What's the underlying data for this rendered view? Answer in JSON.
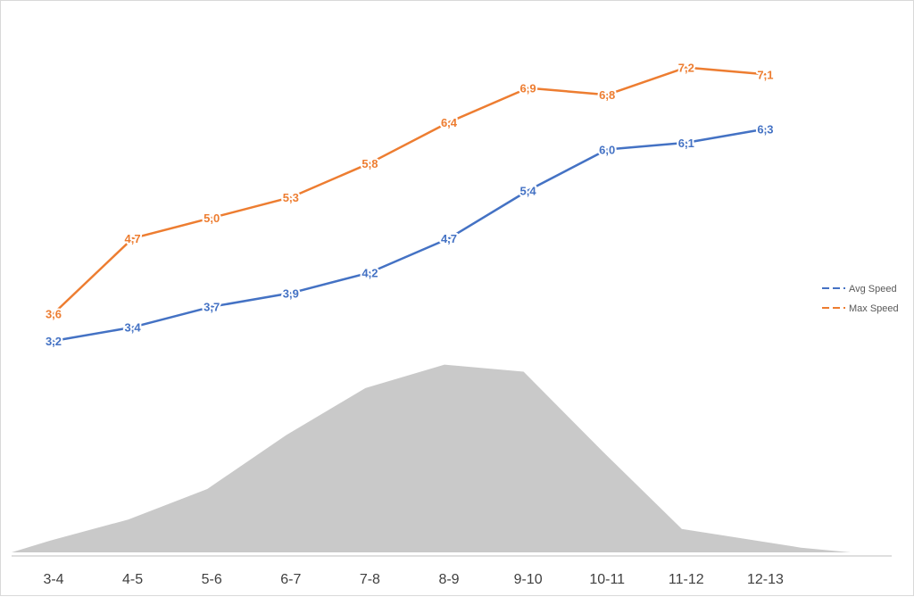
{
  "chart_data": {
    "type": "line",
    "categories": [
      "3-4",
      "4-5",
      "5-6",
      "6-7",
      "7-8",
      "8-9",
      "9-10",
      "10-11",
      "11-12",
      "12-13"
    ],
    "series": [
      {
        "name": "Avg Speed",
        "color": "#4472c4",
        "values": [
          3.2,
          3.4,
          3.7,
          3.9,
          4.2,
          4.7,
          5.4,
          6.0,
          6.1,
          6.3
        ],
        "labels": [
          "3,2",
          "3,4",
          "3,7",
          "3,9",
          "4,2",
          "4,7",
          "5,4",
          "6,0",
          "6,1",
          "6,3"
        ]
      },
      {
        "name": "Max Speed",
        "color": "#ed7d31",
        "values": [
          3.6,
          4.7,
          5.0,
          5.3,
          5.8,
          6.4,
          6.9,
          6.8,
          7.2,
          7.1
        ],
        "labels": [
          "3,6",
          "4,7",
          "5,0",
          "5,3",
          "5,8",
          "6,4",
          "6,9",
          "6,8",
          "7,2",
          "7,1"
        ]
      }
    ],
    "background_area": {
      "color": "#c9c9c9",
      "values": [
        0.5,
        1.4,
        2.7,
        5.0,
        7.0,
        8.0,
        7.7,
        4.3,
        1.0,
        0.2
      ]
    },
    "legend": {
      "position": "right"
    },
    "grid": false
  }
}
